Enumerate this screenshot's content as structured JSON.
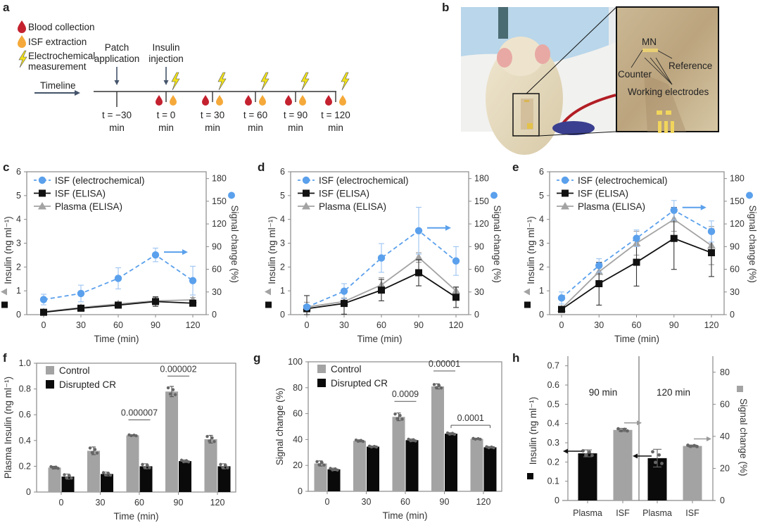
{
  "panels": {
    "a": {
      "label": "a",
      "legend": [
        {
          "icon": "blood-drop-icon",
          "text": "Blood collection",
          "color": "#c4212f"
        },
        {
          "icon": "isf-drop-icon",
          "text": "ISF extraction",
          "color": "#f5a93a"
        },
        {
          "icon": "lightning-icon",
          "text": "Electrochemical",
          "text2": "measurement",
          "color": "#f2e21a"
        }
      ],
      "timeline_label": "Timeline",
      "patch_label": [
        "Patch",
        "application"
      ],
      "injection_label": [
        "Insulin",
        "injection"
      ],
      "timepoints": [
        {
          "t": "t = −30",
          "unit": "min"
        },
        {
          "t": "t = 0",
          "unit": "min"
        },
        {
          "t": "t = 30",
          "unit": "min"
        },
        {
          "t": "t = 60",
          "unit": "min"
        },
        {
          "t": "t = 90",
          "unit": "min"
        },
        {
          "t": "t = 120",
          "unit": "min"
        }
      ]
    },
    "b": {
      "label": "b",
      "annotations": {
        "mn": "MN",
        "reference": "Reference",
        "counter": "Counter",
        "working": "Working electrodes"
      }
    }
  },
  "colors": {
    "electrochemical": "#5aa0ec",
    "isf_elisa": "#111111",
    "plasma_elisa": "#a3a3a3",
    "control": "#a3a3a3",
    "disrupted": "#0a0a0a",
    "axis": "#8a8a8a"
  },
  "chart_data": [
    {
      "panel": "c",
      "type": "line",
      "x": [
        0,
        30,
        60,
        90,
        120
      ],
      "xlabel": "Time (min)",
      "ylabel": "Insulin (ng ml⁻¹)",
      "ylim": [
        0,
        6
      ],
      "yticks": [
        0,
        1,
        2,
        3,
        4,
        5,
        6
      ],
      "y2label": "Signal change (%)",
      "y2lim": [
        0,
        189
      ],
      "y2ticks": [
        0,
        30,
        60,
        90,
        120,
        150,
        180
      ],
      "series": [
        {
          "name": "ISF (electrochemical)",
          "axis": "right",
          "marker": "circle",
          "dashed": true,
          "values": [
            20,
            28,
            48,
            79,
            45
          ],
          "err": [
            7,
            11,
            14,
            9,
            19
          ]
        },
        {
          "name": "ISF (ELISA)",
          "axis": "left",
          "marker": "square",
          "values": [
            0.1,
            0.27,
            0.4,
            0.55,
            0.48
          ],
          "err": [
            0.05,
            0.08,
            0.1,
            0.2,
            0.08
          ]
        },
        {
          "name": "Plasma (ELISA)",
          "axis": "left",
          "marker": "triangle",
          "values": [
            0.12,
            0.3,
            0.45,
            0.58,
            0.62
          ],
          "err": [
            0.05,
            0.06,
            0.08,
            0.15,
            0.1
          ]
        }
      ]
    },
    {
      "panel": "d",
      "type": "line",
      "x": [
        0,
        30,
        60,
        90,
        120
      ],
      "xlabel": "Time (min)",
      "ylabel": "Insulin (ng ml⁻¹)",
      "ylim": [
        0,
        6
      ],
      "yticks": [
        0,
        1,
        2,
        3,
        4,
        5,
        6
      ],
      "y2label": "Signal change (%)",
      "y2lim": [
        0,
        189
      ],
      "y2ticks": [
        0,
        30,
        60,
        90,
        120,
        150,
        180
      ],
      "series": [
        {
          "name": "ISF (electrochemical)",
          "axis": "right",
          "marker": "circle",
          "dashed": true,
          "values": [
            10,
            31,
            75,
            111,
            71
          ],
          "err": [
            3,
            10,
            19,
            31,
            19
          ]
        },
        {
          "name": "ISF (ELISA)",
          "axis": "left",
          "marker": "square",
          "values": [
            0.25,
            0.47,
            1.03,
            1.76,
            0.73
          ],
          "err": [
            0.55,
            0.45,
            0.45,
            0.55,
            0.43
          ]
        },
        {
          "name": "Plasma (ELISA)",
          "axis": "left",
          "marker": "triangle",
          "values": [
            0.32,
            0.55,
            1.25,
            2.4,
            1.0
          ],
          "err": [
            0.2,
            0.15,
            0.3,
            0.2,
            0.15
          ]
        }
      ]
    },
    {
      "panel": "e",
      "type": "line",
      "x": [
        0,
        30,
        60,
        90,
        120
      ],
      "xlabel": "Time (min)",
      "ylabel": "Insulin (ng ml⁻¹)",
      "ylim": [
        0,
        6
      ],
      "yticks": [
        0,
        1,
        2,
        3,
        4,
        5,
        6
      ],
      "y2label": "Signal change (%)",
      "y2lim": [
        0,
        189
      ],
      "y2ticks": [
        0,
        30,
        60,
        90,
        120,
        150,
        180
      ],
      "series": [
        {
          "name": "ISF (electrochemical)",
          "axis": "right",
          "marker": "circle",
          "dashed": true,
          "values": [
            22,
            65,
            101,
            138,
            110
          ],
          "err": [
            8,
            9,
            11,
            13,
            14
          ]
        },
        {
          "name": "ISF (ELISA)",
          "axis": "left",
          "marker": "square",
          "values": [
            0.22,
            1.3,
            2.2,
            3.2,
            2.6
          ],
          "err": [
            0.05,
            0.9,
            1.0,
            1.3,
            1.0
          ]
        },
        {
          "name": "Plasma (ELISA)",
          "axis": "left",
          "marker": "triangle",
          "values": [
            0.25,
            1.8,
            3.0,
            4.0,
            2.9
          ],
          "err": [
            0.05,
            0.4,
            0.5,
            0.5,
            0.8
          ]
        }
      ]
    },
    {
      "panel": "f",
      "type": "bar",
      "categories": [
        "0",
        "30",
        "60",
        "90",
        "120"
      ],
      "xlabel": "Time (min)",
      "ylabel": "Plasma Insulin (ng ml⁻¹)",
      "ylim": [
        0,
        1.0
      ],
      "yticks": [
        "0",
        "0.2",
        "0.4",
        "0.6",
        "0.8",
        "1.0"
      ],
      "series": [
        {
          "name": "Control",
          "values": [
            0.19,
            0.32,
            0.44,
            0.78,
            0.41
          ],
          "err": [
            0.01,
            0.03,
            0.005,
            0.04,
            0.03
          ]
        },
        {
          "name": "Disrupted CR",
          "values": [
            0.12,
            0.14,
            0.2,
            0.24,
            0.2
          ],
          "err": [
            0.02,
            0.015,
            0.02,
            0.01,
            0.02
          ]
        }
      ],
      "pvalues": [
        {
          "from": [
            2,
            0
          ],
          "to": [
            2,
            1
          ],
          "label": "0.000007"
        },
        {
          "from": [
            3,
            0
          ],
          "to": [
            3,
            1
          ],
          "label": "0.000002"
        }
      ]
    },
    {
      "panel": "g",
      "type": "bar",
      "categories": [
        "0",
        "30",
        "60",
        "90",
        "120"
      ],
      "xlabel": "Time (min)",
      "ylabel": "Signal change (%)",
      "ylim": [
        0,
        100
      ],
      "yticks": [
        "0",
        "20",
        "40",
        "60",
        "80",
        "100"
      ],
      "series": [
        {
          "name": "Control",
          "values": [
            21.5,
            39,
            57.5,
            81,
            40.5
          ],
          "err": [
            2,
            0.8,
            3,
            2,
            0.5
          ]
        },
        {
          "name": "Disrupted CR",
          "values": [
            17,
            34.5,
            39.5,
            44.5,
            34
          ],
          "err": [
            1,
            0.5,
            1,
            0.8,
            0.6
          ]
        }
      ],
      "pvalues": [
        {
          "from": [
            2,
            0
          ],
          "to": [
            2,
            1
          ],
          "label": "0.0009"
        },
        {
          "from": [
            3,
            0
          ],
          "to": [
            3,
            1
          ],
          "label": "0.00001"
        },
        {
          "from": [
            3,
            1
          ],
          "to": [
            4,
            1
          ],
          "label": "0.0001",
          "bracket": true
        }
      ]
    },
    {
      "panel": "h",
      "type": "bar",
      "groups": [
        "90 min",
        "120 min"
      ],
      "categories": [
        "Plasma",
        "ISF",
        "Plasma",
        "ISF"
      ],
      "ylabel": "Insulin (ng ml⁻¹)",
      "ylim": [
        0,
        0.75
      ],
      "yticks": [
        "0",
        "0.1",
        "0.2",
        "0.3",
        "0.4",
        "0.5",
        "0.6",
        "0.7"
      ],
      "y2label": "Signal change (%)",
      "y2lim": [
        0,
        90
      ],
      "y2ticks": [
        "0",
        "20",
        "40",
        "60",
        "80"
      ],
      "bars": [
        {
          "category": "Plasma",
          "group": "90 min",
          "axis": "left",
          "value": 0.245,
          "err": 0.018,
          "color": "#0a0a0a"
        },
        {
          "category": "ISF",
          "group": "90 min",
          "axis": "right",
          "value": 44,
          "err": 1,
          "color": "#a3a3a3"
        },
        {
          "category": "Plasma",
          "group": "120 min",
          "axis": "left",
          "value": 0.22,
          "err": 0.046,
          "color": "#0a0a0a"
        },
        {
          "category": "ISF",
          "group": "120 min",
          "axis": "right",
          "value": 34,
          "err": 0.6,
          "color": "#a3a3a3"
        }
      ]
    }
  ]
}
